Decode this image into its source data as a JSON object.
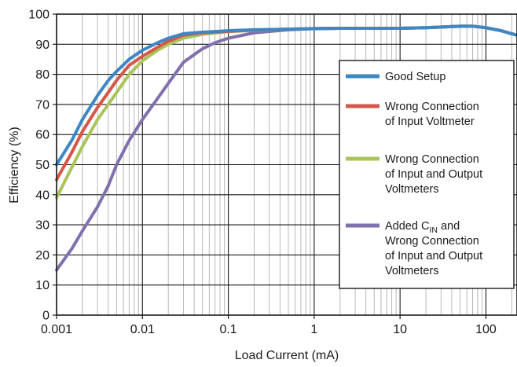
{
  "chart_data": {
    "type": "line",
    "title": "",
    "xlabel": "Load Current (mA)",
    "ylabel": "Efficiency (%)",
    "xscale": "log",
    "xlim": [
      0.001,
      230
    ],
    "ylim": [
      0,
      100
    ],
    "grid": true,
    "legend_position": "right",
    "x_ticks": [
      "0.001",
      "0.01",
      "0.1",
      "1",
      "10",
      "100"
    ],
    "y_ticks": [
      "0",
      "10",
      "20",
      "30",
      "40",
      "50",
      "60",
      "70",
      "80",
      "90",
      "100"
    ],
    "series": [
      {
        "name": "Good Setup",
        "color": "#3d87c5",
        "legend": [
          {
            "text": "Good Setup"
          }
        ],
        "x": [
          0.001,
          0.0015,
          0.002,
          0.003,
          0.004,
          0.005,
          0.007,
          0.01,
          0.015,
          0.02,
          0.03,
          0.05,
          0.1,
          0.2,
          0.5,
          1,
          2,
          5,
          10,
          20,
          50,
          70,
          100,
          150,
          230
        ],
        "y": [
          50,
          58,
          65,
          73,
          78,
          81,
          85,
          88,
          90.5,
          92,
          93.5,
          94,
          94.5,
          94.8,
          95,
          95.2,
          95.3,
          95.3,
          95.3,
          95.5,
          96,
          96,
          95.5,
          94.5,
          93
        ]
      },
      {
        "name": "Wrong Connection of Input Voltmeter",
        "color": "#d5574a",
        "legend": [
          {
            "text": "Wrong Connection"
          },
          {
            "text": "of Input Voltmeter"
          }
        ],
        "x": [
          0.001,
          0.0015,
          0.002,
          0.003,
          0.004,
          0.005,
          0.007,
          0.01,
          0.015,
          0.02,
          0.03,
          0.05,
          0.1,
          0.2,
          0.5,
          1,
          2,
          5,
          10,
          20,
          50,
          70,
          100,
          150,
          230
        ],
        "y": [
          45,
          54,
          61,
          69,
          74,
          78,
          83,
          86,
          89,
          91,
          93,
          93.8,
          94.3,
          94.7,
          95,
          95.2,
          95.3,
          95.3,
          95.3,
          95.5,
          96,
          96,
          95.5,
          94.5,
          93
        ]
      },
      {
        "name": "Wrong Connection of Input and Output Voltmeters",
        "color": "#a9c458",
        "legend": [
          {
            "text": "Wrong Connection"
          },
          {
            "text": "of Input and Output"
          },
          {
            "text": "Voltmeters"
          }
        ],
        "x": [
          0.001,
          0.0015,
          0.002,
          0.003,
          0.004,
          0.005,
          0.007,
          0.01,
          0.015,
          0.02,
          0.03,
          0.05,
          0.1,
          0.2,
          0.5,
          1,
          2,
          5,
          10,
          20,
          50,
          70,
          100,
          150,
          230
        ],
        "y": [
          39,
          49,
          56,
          65,
          70,
          74,
          80,
          84.5,
          88,
          90,
          92,
          93.3,
          94.2,
          94.6,
          95,
          95.2,
          95.3,
          95.3,
          95.3,
          95.5,
          96,
          96,
          95.5,
          94.5,
          93
        ]
      },
      {
        "name": "Added CIN and Wrong Connection of Input and Output Voltmeters",
        "color": "#8070ad",
        "legend": [
          {
            "text": "Added C",
            "sub": "IN",
            "tail": " and"
          },
          {
            "text": "Wrong Connection"
          },
          {
            "text": "of Input and Output"
          },
          {
            "text": "Voltmeters"
          }
        ],
        "x": [
          0.001,
          0.0015,
          0.002,
          0.003,
          0.004,
          0.005,
          0.007,
          0.01,
          0.015,
          0.02,
          0.03,
          0.05,
          0.07,
          0.1,
          0.2,
          0.5,
          1,
          2,
          5,
          10,
          20,
          50,
          70,
          100,
          150,
          230
        ],
        "y": [
          15,
          22,
          28,
          36,
          43,
          50,
          58,
          65,
          72,
          77,
          84,
          88.5,
          90.5,
          92,
          93.8,
          94.8,
          95.2,
          95.3,
          95.3,
          95.3,
          95.5,
          96,
          96,
          95.5,
          94.5,
          93
        ]
      }
    ]
  }
}
